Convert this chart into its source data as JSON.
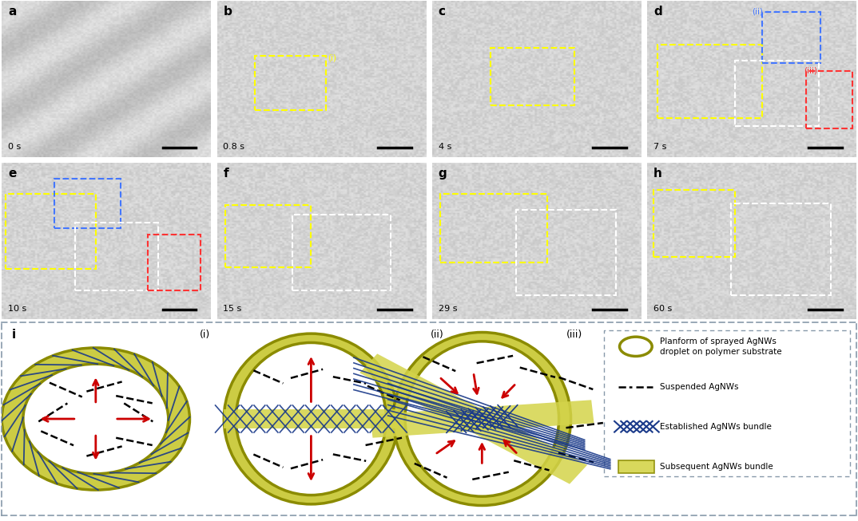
{
  "fig_width": 10.74,
  "fig_height": 6.53,
  "bg_color": "#ffffff",
  "panel_labels": [
    "a",
    "b",
    "c",
    "d",
    "e",
    "f",
    "g",
    "h",
    "i"
  ],
  "time_labels": [
    "0 s",
    "0.8 s",
    "4 s",
    "7 s",
    "10 s",
    "15 s",
    "29 s",
    "60 s"
  ],
  "legend_texts": [
    "Planform of sprayed AgNWs\ndroplet on polymer substrate",
    "Suspended AgNWs",
    "Established AgNWs bundle",
    "Subsequent AgNWs bundle"
  ],
  "olive_color": "#8B8B00",
  "olive_fill": "#CCCC44",
  "blue_color": "#1A3A8A",
  "yellow_fill": "#D4D44A",
  "red_arrow_color": "#CC0000",
  "legend_box_color": "#8899AA",
  "panel_label_fontsize": 11,
  "time_label_fontsize": 8,
  "schematic_label_fontsize": 9,
  "legend_fontsize": 7.5
}
